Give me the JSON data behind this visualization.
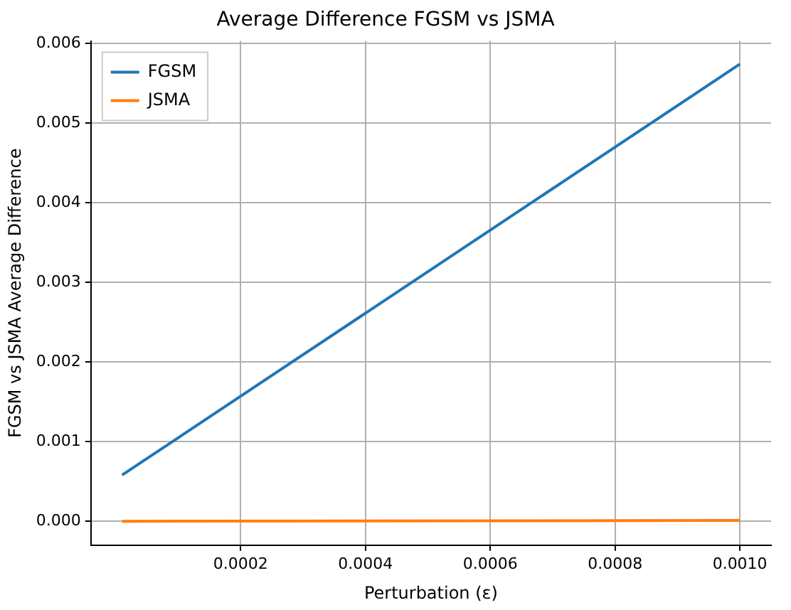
{
  "chart_data": {
    "type": "line",
    "title": "Average Difference FGSM vs JSMA",
    "xlabel": "Perturbation (ε)",
    "ylabel": "FGSM vs JSMA Average Difference",
    "x": [
      1e-05,
      0.001
    ],
    "series": [
      {
        "name": "FGSM",
        "color": "#1f77b4",
        "values": [
          0.00058,
          0.00574
        ]
      },
      {
        "name": "JSMA",
        "color": "#ff7f0e",
        "values": [
          0.0,
          1e-05
        ]
      }
    ],
    "xlim": [
      -4e-05,
      0.00105
    ],
    "ylim": [
      -0.0003,
      0.00603
    ],
    "xticks": [
      {
        "value": 0.0002,
        "label": "0.0002"
      },
      {
        "value": 0.0004,
        "label": "0.0004"
      },
      {
        "value": 0.0006,
        "label": "0.0006"
      },
      {
        "value": 0.0008,
        "label": "0.0008"
      },
      {
        "value": 0.001,
        "label": "0.0010"
      }
    ],
    "yticks": [
      {
        "value": 0,
        "label": "0.000"
      },
      {
        "value": 0.001,
        "label": "0.001"
      },
      {
        "value": 0.002,
        "label": "0.002"
      },
      {
        "value": 0.003,
        "label": "0.003"
      },
      {
        "value": 0.004,
        "label": "0.004"
      },
      {
        "value": 0.005,
        "label": "0.005"
      },
      {
        "value": 0.006,
        "label": "0.006"
      }
    ],
    "grid": true,
    "legend": "top left",
    "marker": "none",
    "line_style": "solid"
  }
}
